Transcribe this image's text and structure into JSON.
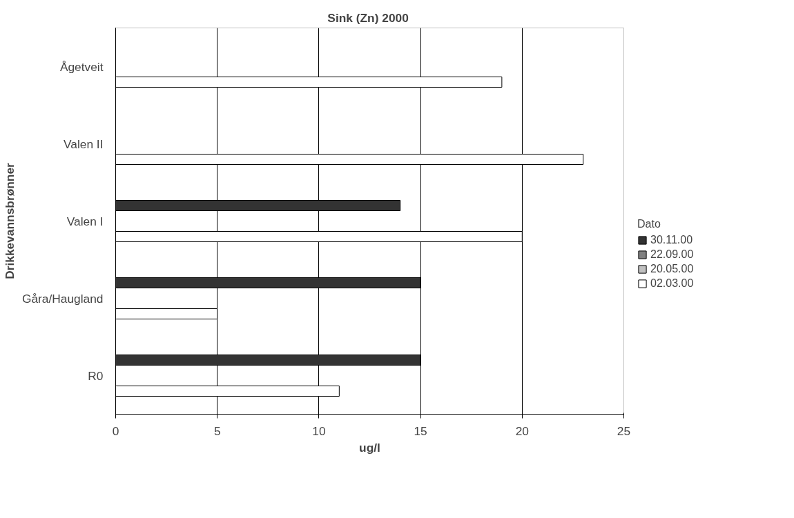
{
  "chart_data": {
    "type": "bar",
    "orientation": "horizontal",
    "title": "Sink (Zn)  2000",
    "xlabel": "ug/l",
    "ylabel": "Drikkevannsbrønner",
    "legend_title": "Dato",
    "categories": [
      "Ågetveit",
      "Valen II",
      "Valen I",
      "Gåra/Haugland",
      "R0"
    ],
    "series": [
      {
        "name": "30.11.00",
        "color": "#333333",
        "values": [
          null,
          null,
          14,
          15,
          15
        ]
      },
      {
        "name": "22.09.00",
        "color": "#808080",
        "values": [
          null,
          null,
          null,
          null,
          null
        ]
      },
      {
        "name": "20.05.00",
        "color": "#c0c0c0",
        "values": [
          null,
          null,
          null,
          null,
          null
        ]
      },
      {
        "name": "02.03.00",
        "color": "#ffffff",
        "values": [
          19,
          23,
          20,
          5,
          11
        ]
      }
    ],
    "xlim": [
      0,
      25
    ],
    "xticks": [
      0,
      5,
      10,
      15,
      20,
      25
    ],
    "grid": "x",
    "legend": "right"
  }
}
